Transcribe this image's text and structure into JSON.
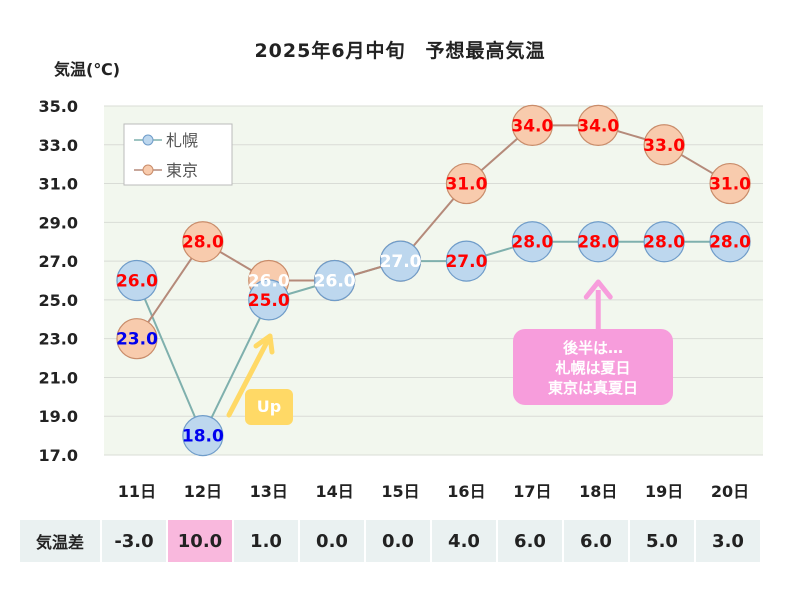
{
  "title": "2025年6月中旬　予想最高気温",
  "y_unit_label": "気温(℃)",
  "colors": {
    "plot_bg": "#f2f7ee",
    "grid": "#d9dcd6",
    "sapporo_fill": "#bdd7ee",
    "sapporo_stroke": "#6f9cc9",
    "sapporo_line": "#7fb0ad",
    "tokyo_fill": "#f8cbad",
    "tokyo_stroke": "#c98c6a",
    "tokyo_line": "#b58a7a",
    "label_red": "#ff0000",
    "label_blue": "#0000ee",
    "label_white": "#ffffff",
    "callout_pink": "#f79ddc",
    "arrow_yellow": "#ffd966",
    "highlight_pink": "#f9b8dd",
    "table_bg": "#eaf1f1"
  },
  "chart_data": {
    "type": "line",
    "title": "2025年6月中旬　予想最高気温",
    "ylabel": "気温(℃)",
    "categories": [
      "11日",
      "12日",
      "13日",
      "14日",
      "15日",
      "16日",
      "17日",
      "18日",
      "19日",
      "20日"
    ],
    "ylim": [
      17.0,
      35.0
    ],
    "yticks": [
      "17.0",
      "19.0",
      "21.0",
      "23.0",
      "25.0",
      "27.0",
      "29.0",
      "31.0",
      "33.0",
      "35.0"
    ],
    "grid": true,
    "legend_position": "top-left",
    "series": [
      {
        "name": "札幌",
        "values": [
          26.0,
          18.0,
          25.0,
          26.0,
          27.0,
          27.0,
          28.0,
          28.0,
          28.0,
          28.0
        ],
        "labels": [
          "26.0",
          "18.0",
          "25.0",
          "26.0",
          "27.0",
          "27.0",
          "28.0",
          "28.0",
          "28.0",
          "28.0"
        ],
        "label_colors": [
          "red",
          "blue",
          "red",
          "white",
          "white",
          "red",
          "red",
          "red",
          "red",
          "red"
        ]
      },
      {
        "name": "東京",
        "values": [
          23.0,
          28.0,
          26.0,
          26.0,
          27.0,
          31.0,
          34.0,
          34.0,
          33.0,
          31.0
        ],
        "labels": [
          "23.0",
          "28.0",
          "26.0",
          "26.0",
          "27.0",
          "31.0",
          "34.0",
          "34.0",
          "33.0",
          "31.0"
        ],
        "label_colors": [
          "blue",
          "red",
          "white",
          "white",
          "white",
          "red",
          "red",
          "red",
          "red",
          "red"
        ]
      }
    ]
  },
  "difference_table": {
    "label": "気温差",
    "values": [
      "-3.0",
      "10.0",
      "1.0",
      "0.0",
      "0.0",
      "4.0",
      "6.0",
      "6.0",
      "5.0",
      "3.0"
    ],
    "highlight_index": 1
  },
  "annotations": {
    "callout_lines": [
      "後半は…",
      "札幌は夏日",
      "東京は真夏日"
    ],
    "up_label": "Up"
  }
}
